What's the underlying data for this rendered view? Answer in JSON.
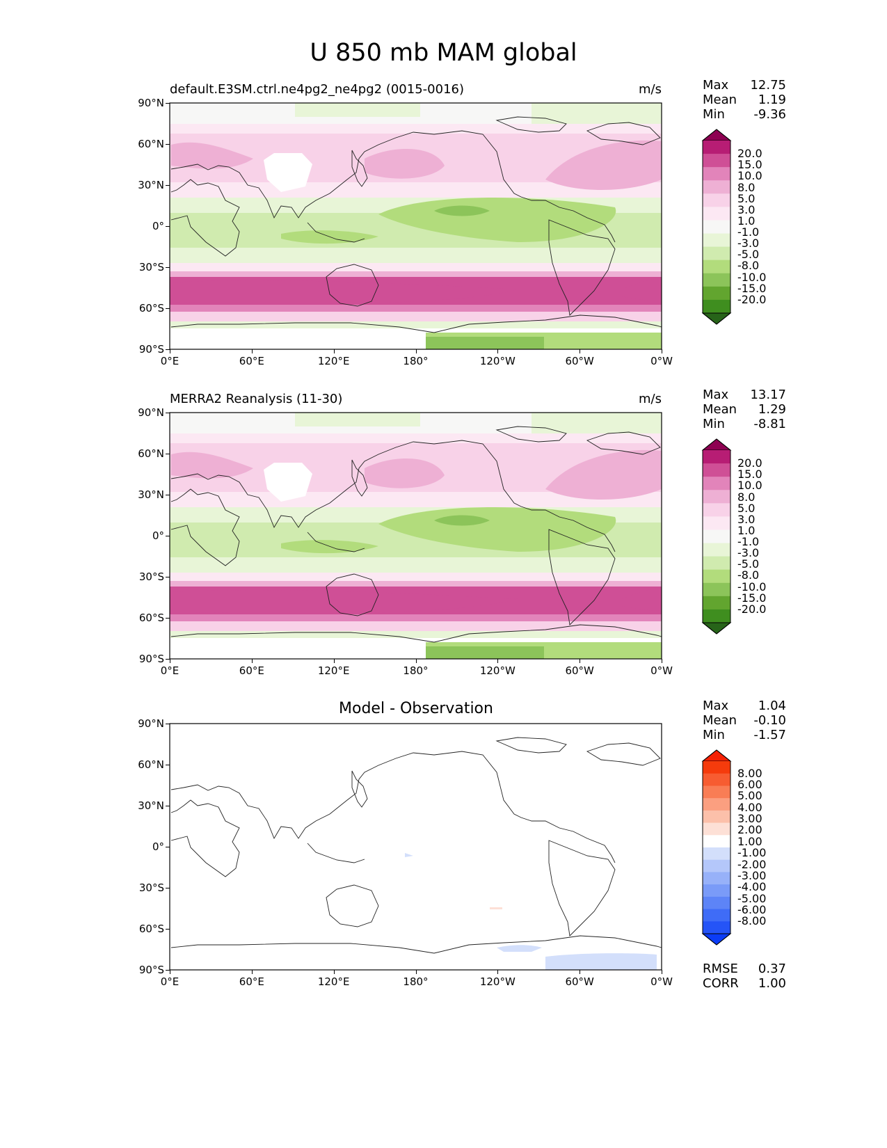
{
  "title": "U 850 mb MAM global",
  "units": "m/s",
  "lat_ticks": [
    "90°N",
    "60°N",
    "30°N",
    "0°",
    "30°S",
    "60°S",
    "90°S"
  ],
  "lon_ticks": [
    "0°E",
    "60°E",
    "120°E",
    "180°",
    "120°W",
    "60°W",
    "0°W"
  ],
  "panels": [
    {
      "title": "default.E3SM.ctrl.ne4pg2_ne4pg2 (0015-0016)",
      "units": "m/s",
      "stats": [
        {
          "label": "Max",
          "value": "12.75"
        },
        {
          "label": "Mean",
          "value": "1.19"
        },
        {
          "label": "Min",
          "value": "-9.36"
        }
      ],
      "colorbar_labels": [
        "20.0",
        "15.0",
        "10.0",
        "8.0",
        "5.0",
        "3.0",
        "1.0",
        "-1.0",
        "-3.0",
        "-5.0",
        "-8.0",
        "-10.0",
        "-15.0",
        "-20.0"
      ]
    },
    {
      "title": "MERRA2 Reanalysis (11-30)",
      "units": "m/s",
      "stats": [
        {
          "label": "Max",
          "value": "13.17"
        },
        {
          "label": "Mean",
          "value": "1.29"
        },
        {
          "label": "Min",
          "value": "-8.81"
        }
      ],
      "colorbar_labels": [
        "20.0",
        "15.0",
        "10.0",
        "8.0",
        "5.0",
        "3.0",
        "1.0",
        "-1.0",
        "-3.0",
        "-5.0",
        "-8.0",
        "-10.0",
        "-15.0",
        "-20.0"
      ]
    },
    {
      "title": "Model - Observation",
      "units": "",
      "stats": [
        {
          "label": "Max",
          "value": "1.04"
        },
        {
          "label": "Mean",
          "value": "-0.10"
        },
        {
          "label": "Min",
          "value": "-1.57"
        }
      ],
      "colorbar_labels": [
        "8.00",
        "6.00",
        "5.00",
        "4.00",
        "3.00",
        "2.00",
        "1.00",
        "-1.00",
        "-2.00",
        "-3.00",
        "-4.00",
        "-5.00",
        "-6.00",
        "-8.00"
      ],
      "extra_stats": [
        {
          "label": "RMSE",
          "value": "0.37"
        },
        {
          "label": "CORR",
          "value": "1.00"
        }
      ]
    }
  ],
  "colors": {
    "piyg": [
      "#276419",
      "#3f8e1f",
      "#62a52f",
      "#8cc45a",
      "#b2dc7c",
      "#d0ebaf",
      "#e8f5d7",
      "#f7f7f6",
      "#fce8f3",
      "#f8d2e8",
      "#eeb0d4",
      "#e284ba",
      "#cf4f96",
      "#b71d74",
      "#8e0152"
    ],
    "bwr": [
      "#0b3cf7",
      "#2554f7",
      "#3f6cf7",
      "#5d84f7",
      "#7a9bf8",
      "#97b1f9",
      "#b4c7fa",
      "#d3dffb",
      "#ffffff",
      "#fde0d6",
      "#fcc0aa",
      "#fb9f80",
      "#f97d55",
      "#f75c31",
      "#f53b0c",
      "#f52105"
    ]
  }
}
